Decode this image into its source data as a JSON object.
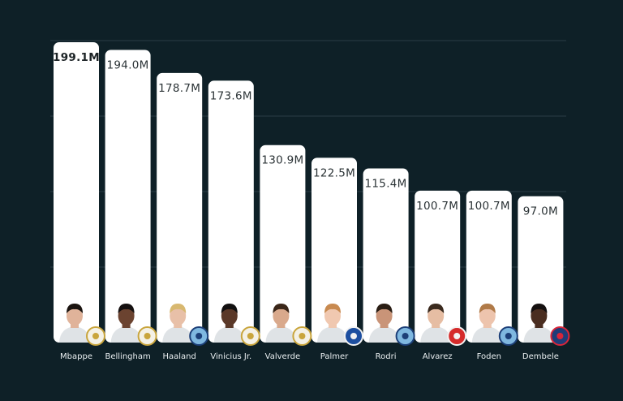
{
  "chart_data": {
    "type": "bar",
    "categories": [
      "Mbappe",
      "Bellingham",
      "Haaland",
      "Vinicius Jr.",
      "Valverde",
      "Palmer",
      "Rodri",
      "Alvarez",
      "Foden",
      "Dembele"
    ],
    "values": [
      199.1,
      194.0,
      178.7,
      173.6,
      130.9,
      122.5,
      115.4,
      100.7,
      100.7,
      97.0
    ],
    "value_labels": [
      "199.1M",
      "194.0M",
      "178.7M",
      "173.6M",
      "130.9M",
      "122.5M",
      "115.4M",
      "100.7M",
      "100.7M",
      "97.0M"
    ],
    "clubs": [
      "real-madrid-badge",
      "real-madrid-badge",
      "manchester-city-badge",
      "real-madrid-badge",
      "real-madrid-badge",
      "chelsea-badge",
      "manchester-city-badge",
      "atletico-madrid-badge",
      "manchester-city-badge",
      "psg-badge"
    ],
    "grid": true,
    "colors": {
      "background": "#0e2027",
      "bar": "#ffffff",
      "grid": "#2a3d44",
      "label": "#2b3336",
      "category": "#e9eef0"
    }
  }
}
